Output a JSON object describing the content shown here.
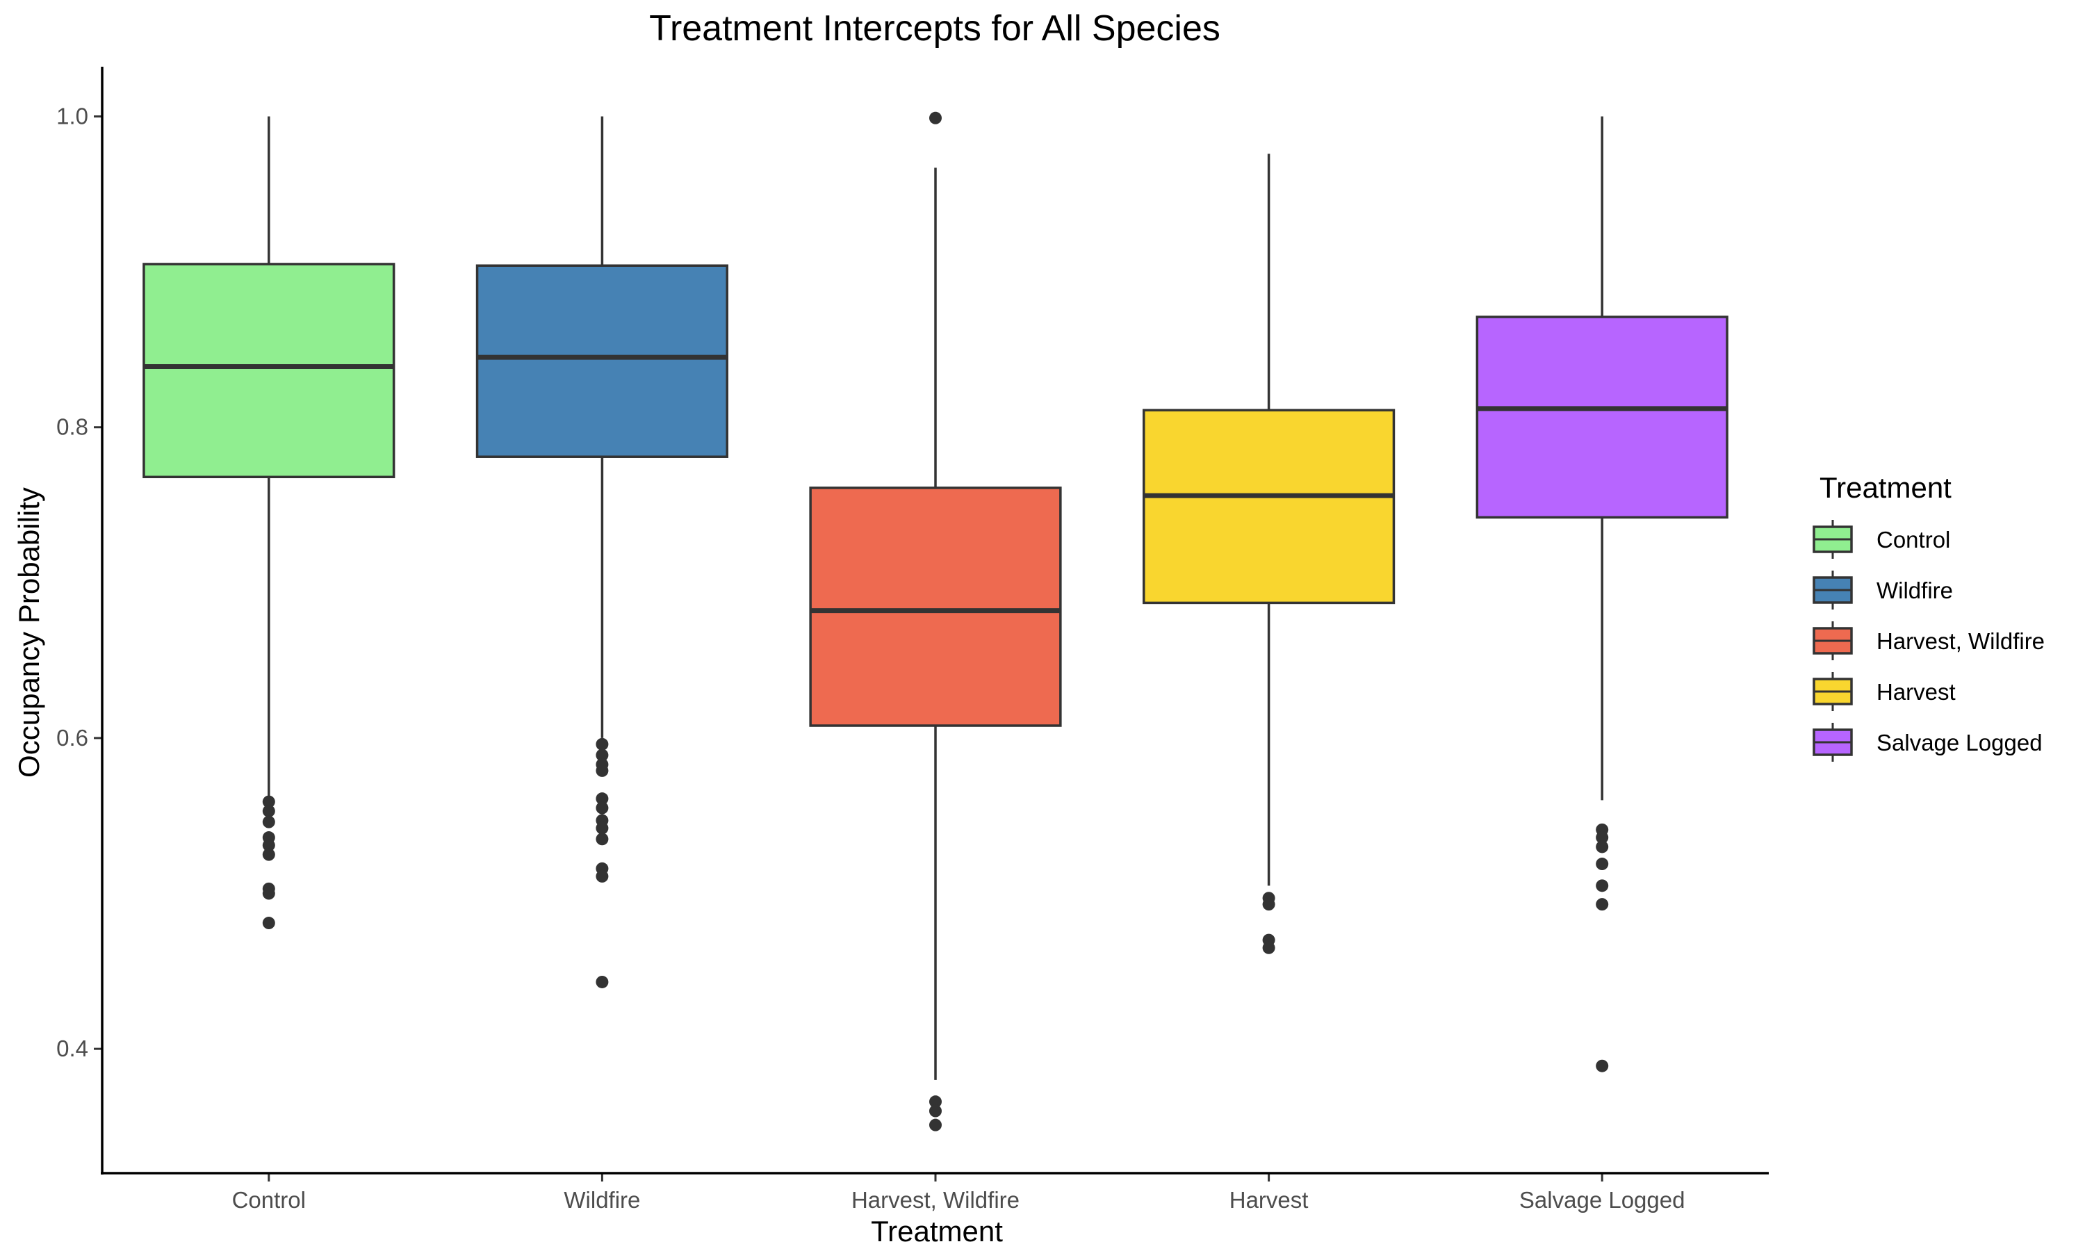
{
  "chart_data": {
    "type": "box",
    "title": "Treatment Intercepts for All Species",
    "xlabel": "Treatment",
    "ylabel": "Occupancy Probability",
    "ylim": [
      0.32,
      1.032
    ],
    "yticks": [
      "0.4",
      "0.6",
      "0.8",
      "1.0"
    ],
    "grid": false,
    "legend": {
      "title": "Treatment",
      "position": "right"
    },
    "categories": [
      "Control",
      "Wildfire",
      "Harvest, Wildfire",
      "Harvest",
      "Salvage Logged"
    ],
    "series": [
      {
        "name": "Control",
        "color": "#90EE90",
        "whisker_low": 0.562,
        "q1": 0.768,
        "median": 0.839,
        "q3": 0.905,
        "whisker_high": 1.0,
        "outliers": [
          0.559,
          0.553,
          0.546,
          0.536,
          0.531,
          0.525,
          0.503,
          0.5,
          0.481
        ]
      },
      {
        "name": "Wildfire",
        "color": "#4682B4",
        "whisker_low": 0.6,
        "q1": 0.781,
        "median": 0.845,
        "q3": 0.904,
        "whisker_high": 1.0,
        "outliers": [
          0.596,
          0.589,
          0.583,
          0.579,
          0.561,
          0.555,
          0.547,
          0.542,
          0.535,
          0.516,
          0.511,
          0.443
        ]
      },
      {
        "name": "Harvest, Wildfire",
        "color": "#EE6A50",
        "whisker_low": 0.38,
        "q1": 0.608,
        "median": 0.682,
        "q3": 0.761,
        "whisker_high": 0.967,
        "outliers": [
          0.999,
          0.366,
          0.36,
          0.351
        ]
      },
      {
        "name": "Harvest",
        "color": "#F9D62F",
        "whisker_low": 0.505,
        "q1": 0.687,
        "median": 0.756,
        "q3": 0.811,
        "whisker_high": 0.976,
        "outliers": [
          0.497,
          0.493,
          0.47,
          0.465
        ]
      },
      {
        "name": "Salvage Logged",
        "color": "#B765FF",
        "whisker_low": 0.56,
        "q1": 0.742,
        "median": 0.812,
        "q3": 0.871,
        "whisker_high": 1.0,
        "outliers": [
          0.541,
          0.536,
          0.53,
          0.519,
          0.505,
          0.493,
          0.389
        ]
      }
    ]
  }
}
